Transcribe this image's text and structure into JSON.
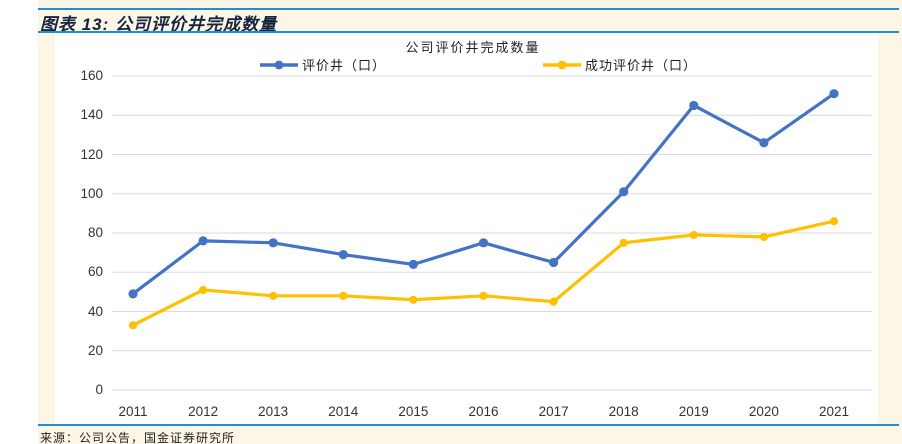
{
  "page": {
    "figure_label": "图表 13: 公司评价井完成数量",
    "source_note": "来源：公司公告，国金证券研究所"
  },
  "colors": {
    "page_background": "#FFFFFF",
    "content_background": "#FCF6E6",
    "panel_background": "#FFFFFF",
    "rule_blue": "#1E8FD0",
    "figure_label_text": "#16243D",
    "axis_text": "#333333",
    "gridline": "#DADADA",
    "series_blue": "#4472C4",
    "series_yellow": "#FFC000"
  },
  "chart_data": {
    "type": "line",
    "title": "公司评价井完成数量",
    "categories": [
      "2011",
      "2012",
      "2013",
      "2014",
      "2015",
      "2016",
      "2017",
      "2018",
      "2019",
      "2020",
      "2021"
    ],
    "series": [
      {
        "name": "评价井（口）",
        "color": "#4472C4",
        "values": [
          49,
          76,
          75,
          69,
          64,
          75,
          65,
          101,
          145,
          126,
          151
        ]
      },
      {
        "name": "成功评价井（口）",
        "color": "#FFC000",
        "values": [
          33,
          51,
          48,
          48,
          46,
          48,
          45,
          75,
          79,
          78,
          86
        ]
      }
    ],
    "xlabel": "",
    "ylabel": "",
    "ylim": [
      0,
      160
    ],
    "yticks": [
      0,
      20,
      40,
      60,
      80,
      100,
      120,
      140,
      160
    ],
    "grid": "horizontal",
    "legend_position": "top",
    "marker": "circle"
  }
}
